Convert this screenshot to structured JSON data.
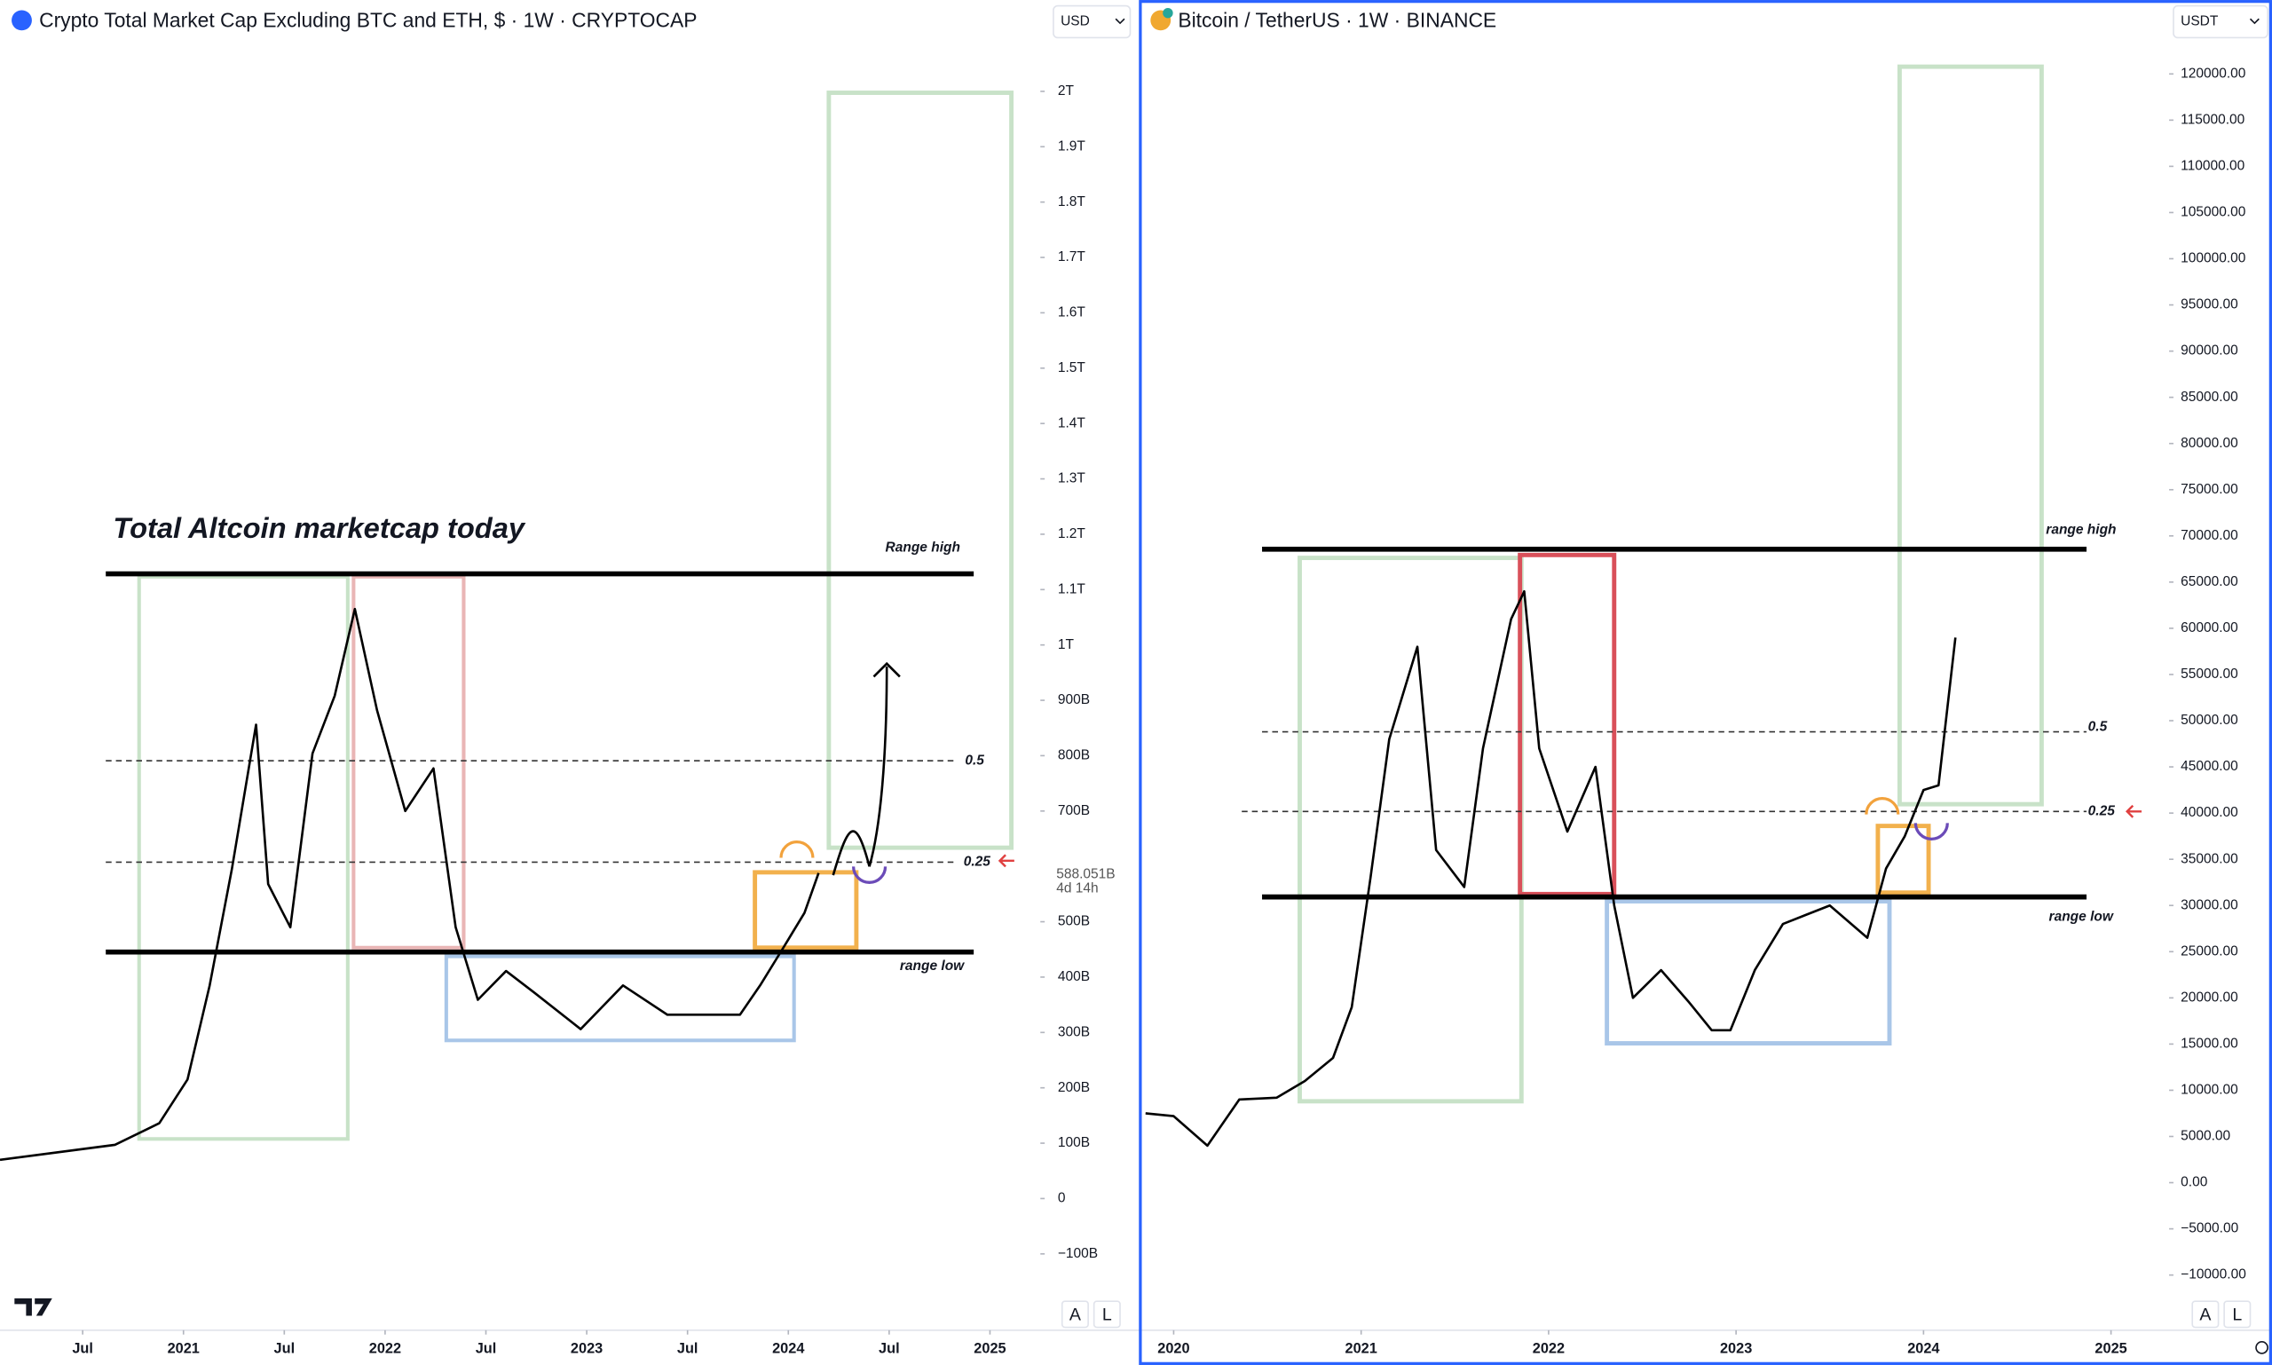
{
  "chart_data": [
    {
      "type": "line",
      "title": "Crypto Total Market Cap Excluding BTC and ETH, $ · 1W · CRYPTOCAP",
      "currency": "USD",
      "scale_buttons": [
        "A",
        "L"
      ],
      "annotations": {
        "headline": "Total Altcoin marketcap today",
        "range_high": "Range high",
        "range_low": "range low",
        "fib_half": "0.5",
        "fib_quarter": "0.25"
      },
      "last_price": {
        "value": 588051000000,
        "label": "588.051B"
      },
      "countdown": "4d 14h",
      "xlim": [
        2020.09,
        2025.25
      ],
      "ylim": [
        -230000000000,
        2165000000000
      ],
      "xticks": [
        {
          "value": 2020.5,
          "label": "Jul"
        },
        2021,
        {
          "value": 2021.5,
          "label": "Jul"
        },
        2022,
        {
          "value": 2022.5,
          "label": "Jul"
        },
        2023,
        {
          "value": 2023.5,
          "label": "Jul"
        },
        2024,
        {
          "value": 2024.5,
          "label": "Jul"
        },
        2025
      ],
      "yticks": [
        {
          "value": 2000000000000,
          "label": "2T"
        },
        {
          "value": 1900000000000,
          "label": "1.9T"
        },
        {
          "value": 1800000000000,
          "label": "1.8T"
        },
        {
          "value": 1700000000000,
          "label": "1.7T"
        },
        {
          "value": 1600000000000,
          "label": "1.6T"
        },
        {
          "value": 1500000000000,
          "label": "1.5T"
        },
        {
          "value": 1400000000000,
          "label": "1.4T"
        },
        {
          "value": 1300000000000,
          "label": "1.3T"
        },
        {
          "value": 1200000000000,
          "label": "1.2T"
        },
        {
          "value": 1100000000000,
          "label": "1.1T"
        },
        {
          "value": 1000000000000,
          "label": "1T"
        },
        {
          "value": 900000000000,
          "label": "900B"
        },
        {
          "value": 800000000000,
          "label": "800B"
        },
        {
          "value": 700000000000,
          "label": "700B"
        },
        {
          "value": 500000000000,
          "label": "500B"
        },
        {
          "value": 400000000000,
          "label": "400B"
        },
        {
          "value": 300000000000,
          "label": "300B"
        },
        {
          "value": 200000000000,
          "label": "200B"
        },
        {
          "value": 100000000000,
          "label": "100B"
        },
        0,
        {
          "value": -100000000000,
          "label": "−100B"
        }
      ],
      "x": [
        2020.09,
        2020.66,
        2020.88,
        2021.02,
        2021.13,
        2021.24,
        2021.36,
        2021.42,
        2021.53,
        2021.64,
        2021.75,
        2021.85,
        2021.96,
        2022.1,
        2022.24,
        2022.35,
        2022.46,
        2022.6,
        2022.74,
        2022.97,
        2023.18,
        2023.4,
        2023.61,
        2023.76,
        2023.86,
        2023.97,
        2024.08,
        2024.15
      ],
      "series": [
        {
          "color": "#000000",
          "values": [
            70000000000,
            97000000000,
            136000000000,
            215000000000,
            385000000000,
            595000000000,
            856000000000,
            568000000000,
            490000000000,
            804000000000,
            908000000000,
            1065000000000,
            882000000000,
            700000000000,
            777000000000,
            490000000000,
            359000000000,
            411000000000,
            372000000000,
            306000000000,
            385000000000,
            332000000000,
            332000000000,
            332000000000,
            385000000000,
            450000000000,
            516000000000,
            588000000000
          ]
        }
      ]
    },
    {
      "type": "line",
      "title": "Bitcoin / TetherUS · 1W · BINANCE",
      "currency": "USDT",
      "scale_buttons": [
        "A",
        "L"
      ],
      "annotations": {
        "range_high": "range high",
        "range_low": "range low",
        "fib_half": "0.5",
        "fib_quarter": "0.25"
      },
      "xlim": [
        2019.83,
        2025.31
      ],
      "ylim": [
        -15500,
        128000
      ],
      "xticks": [
        2020,
        2021,
        2022,
        2023,
        2024,
        2025
      ],
      "yticks": [
        {
          "value": 120000,
          "label": "120000.00"
        },
        {
          "value": 115000,
          "label": "115000.00"
        },
        {
          "value": 110000,
          "label": "110000.00"
        },
        {
          "value": 105000,
          "label": "105000.00"
        },
        {
          "value": 100000,
          "label": "100000.00"
        },
        {
          "value": 95000,
          "label": "95000.00"
        },
        {
          "value": 90000,
          "label": "90000.00"
        },
        {
          "value": 85000,
          "label": "85000.00"
        },
        {
          "value": 80000,
          "label": "80000.00"
        },
        {
          "value": 75000,
          "label": "75000.00"
        },
        {
          "value": 70000,
          "label": "70000.00"
        },
        {
          "value": 65000,
          "label": "65000.00"
        },
        {
          "value": 60000,
          "label": "60000.00"
        },
        {
          "value": 55000,
          "label": "55000.00"
        },
        {
          "value": 50000,
          "label": "50000.00"
        },
        {
          "value": 45000,
          "label": "45000.00"
        },
        {
          "value": 40000,
          "label": "40000.00"
        },
        {
          "value": 35000,
          "label": "35000.00"
        },
        {
          "value": 30000,
          "label": "30000.00"
        },
        {
          "value": 25000,
          "label": "25000.00"
        },
        {
          "value": 20000,
          "label": "20000.00"
        },
        {
          "value": 15000,
          "label": "15000.00"
        },
        {
          "value": 10000,
          "label": "10000.00"
        },
        {
          "value": 5000,
          "label": "5000.00"
        },
        {
          "value": 0,
          "label": "0.00"
        },
        {
          "value": -5000,
          "label": "−5000.00"
        },
        {
          "value": -10000,
          "label": "−10000.00"
        }
      ],
      "x": [
        2019.85,
        2020.0,
        2020.18,
        2020.35,
        2020.55,
        2020.7,
        2020.85,
        2020.95,
        2021.05,
        2021.15,
        2021.3,
        2021.4,
        2021.55,
        2021.65,
        2021.8,
        2021.87,
        2021.95,
        2022.1,
        2022.25,
        2022.35,
        2022.45,
        2022.6,
        2022.75,
        2022.87,
        2022.97,
        2023.1,
        2023.25,
        2023.5,
        2023.7,
        2023.8,
        2023.9,
        2024.0,
        2024.08,
        2024.17
      ],
      "series": [
        {
          "color": "#000000",
          "values": [
            7500,
            7200,
            4000,
            9000,
            9200,
            11000,
            13500,
            19000,
            33000,
            48000,
            58000,
            36000,
            32000,
            47000,
            61000,
            64000,
            47000,
            38000,
            45000,
            30000,
            20000,
            23000,
            19500,
            16500,
            16500,
            23000,
            28000,
            30000,
            26500,
            34000,
            37500,
            42500,
            43000,
            59000
          ]
        }
      ]
    }
  ]
}
